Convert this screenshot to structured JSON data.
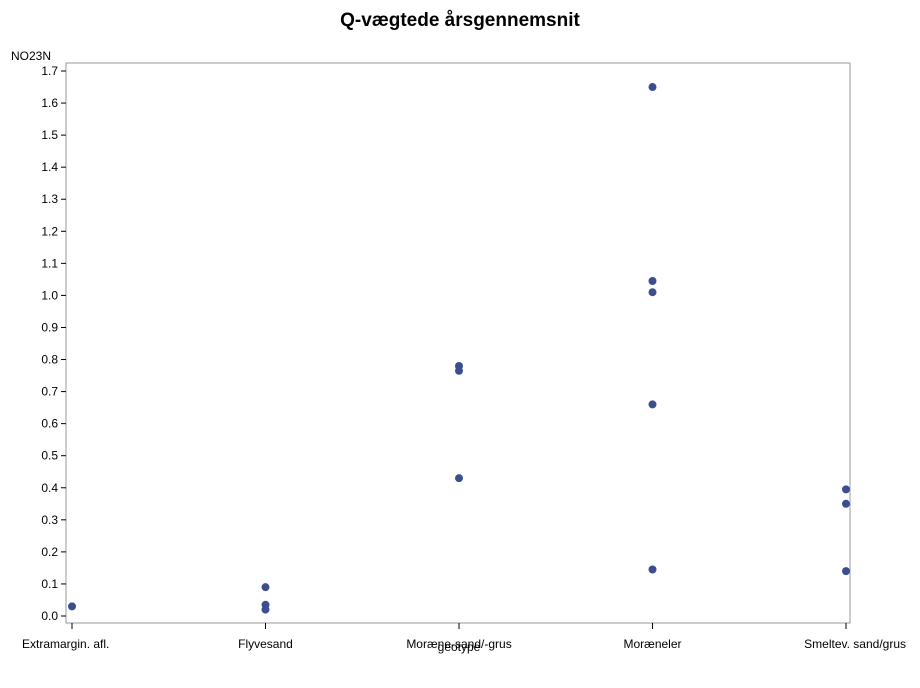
{
  "chart_data": {
    "type": "scatter",
    "title": "Q-vægtede årsgennemsnit",
    "xlabel": "geotype",
    "ylabel": "NO23N",
    "categories": [
      "Extramargin. afl.",
      "Flyvesand",
      "Moræne-sand/-grus",
      "Moræneler",
      "Smeltev. sand/grus"
    ],
    "ylim": [
      0.0,
      1.7
    ],
    "yticks": [
      0.0,
      0.1,
      0.2,
      0.3,
      0.4,
      0.5,
      0.6,
      0.7,
      0.8,
      0.9,
      1.0,
      1.1,
      1.2,
      1.3,
      1.4,
      1.5,
      1.6,
      1.7
    ],
    "ytick_labels": [
      "0.0",
      "0.1",
      "0.2",
      "0.3",
      "0.4",
      "0.5",
      "0.6",
      "0.7",
      "0.8",
      "0.9",
      "1.0",
      "1.1",
      "1.2",
      "1.3",
      "1.4",
      "1.5",
      "1.6",
      "1.7"
    ],
    "points": [
      {
        "category": "Extramargin. afl.",
        "y": 0.03
      },
      {
        "category": "Flyvesand",
        "y": 0.09
      },
      {
        "category": "Flyvesand",
        "y": 0.035
      },
      {
        "category": "Flyvesand",
        "y": 0.02
      },
      {
        "category": "Moræne-sand/-grus",
        "y": 0.78
      },
      {
        "category": "Moræne-sand/-grus",
        "y": 0.765
      },
      {
        "category": "Moræne-sand/-grus",
        "y": 0.43
      },
      {
        "category": "Moræneler",
        "y": 1.65
      },
      {
        "category": "Moræneler",
        "y": 1.045
      },
      {
        "category": "Moræneler",
        "y": 1.01
      },
      {
        "category": "Moræneler",
        "y": 0.66
      },
      {
        "category": "Moræneler",
        "y": 0.145
      },
      {
        "category": "Smeltev. sand/grus",
        "y": 0.395
      },
      {
        "category": "Smeltev. sand/grus",
        "y": 0.35
      },
      {
        "category": "Smeltev. sand/grus",
        "y": 0.14
      }
    ],
    "marker_color": "#3b4f8e",
    "axis_color": "#9a9a9a",
    "grid": false
  }
}
